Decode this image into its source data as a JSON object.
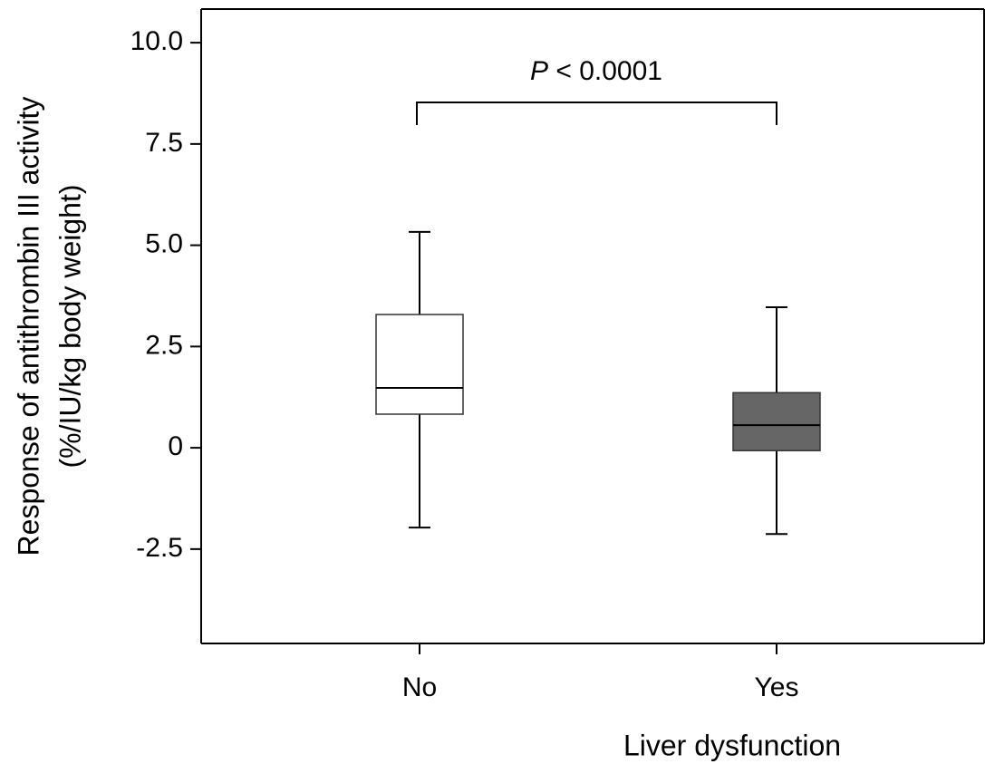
{
  "chart_data": {
    "type": "box",
    "y_label": [
      "Response of antithrombin III activity",
      "(%/IU/kg body weight)"
    ],
    "x_label": "Liver dysfunction",
    "annotation_symbol": "P",
    "annotation_text": "< 0.0001",
    "categories": [
      "No",
      "Yes"
    ],
    "whisker_high": [
      5.33,
      3.47
    ],
    "q3": [
      3.29,
      1.36
    ],
    "median": [
      1.48,
      0.56
    ],
    "q1": [
      0.83,
      -0.07
    ],
    "whisker_low": [
      -1.97,
      -2.13
    ],
    "colors": [
      "#ffffff",
      "#666666"
    ],
    "ylim": [
      -4.83,
      10.83
    ],
    "yticks": [
      {
        "value": 10,
        "label": "10.0"
      },
      7.5,
      {
        "value": 5,
        "label": "5.0"
      },
      2.5,
      0,
      -2.5
    ]
  }
}
